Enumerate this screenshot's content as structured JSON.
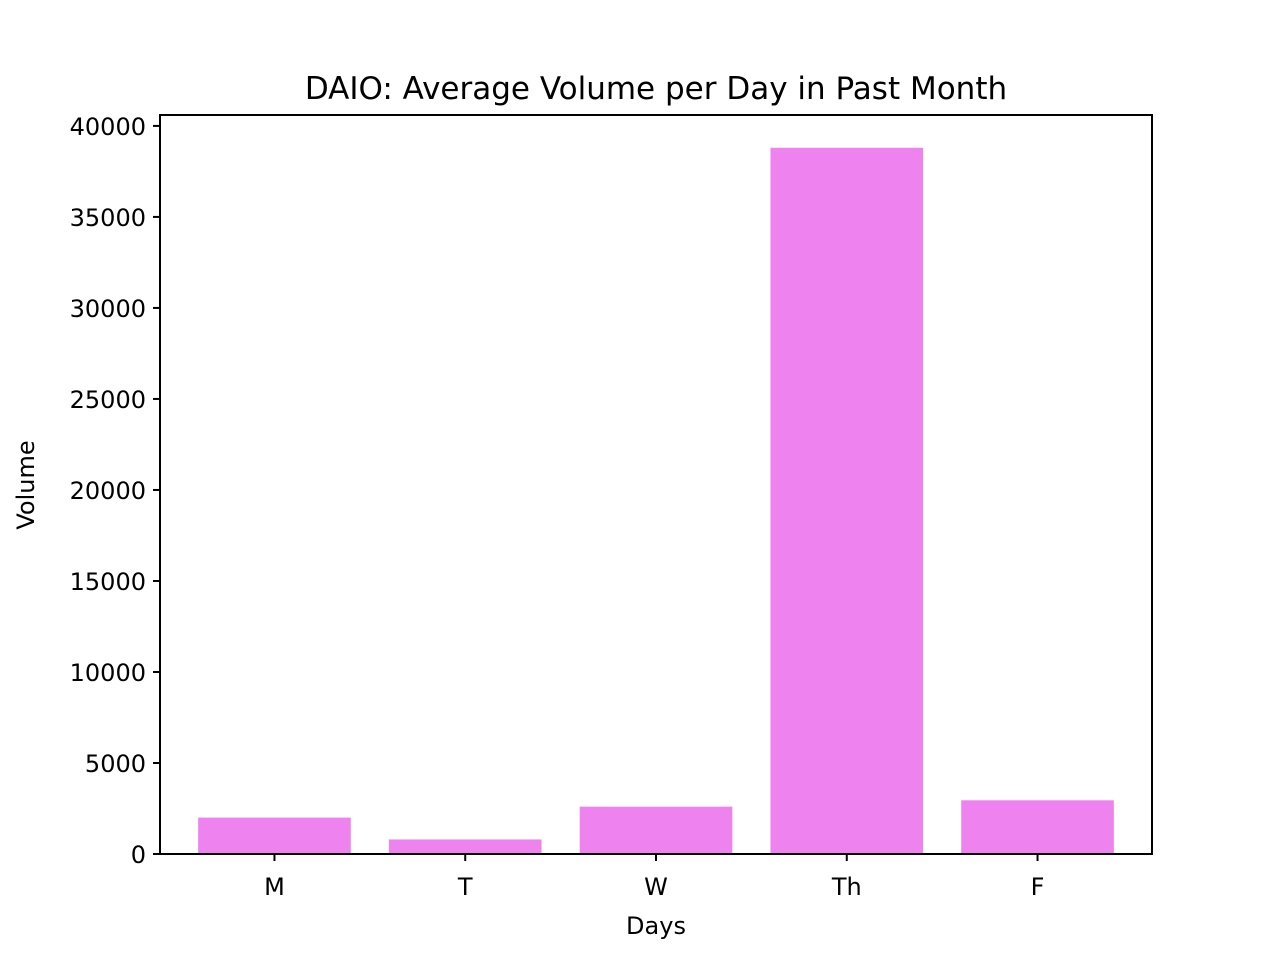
{
  "chart_data": {
    "type": "bar",
    "title": "DAIO: Average Volume per Day in Past Month",
    "xlabel": "Days",
    "ylabel": "Volume",
    "categories": [
      "M",
      "T",
      "W",
      "Th",
      "F"
    ],
    "values": [
      2000,
      800,
      2600,
      38800,
      2950
    ],
    "ylim": [
      0,
      40600
    ],
    "yticks": [
      0,
      5000,
      10000,
      15000,
      20000,
      25000,
      30000,
      35000,
      40000
    ],
    "bar_color": "#ee82ee",
    "grid": false,
    "legend": "none"
  }
}
